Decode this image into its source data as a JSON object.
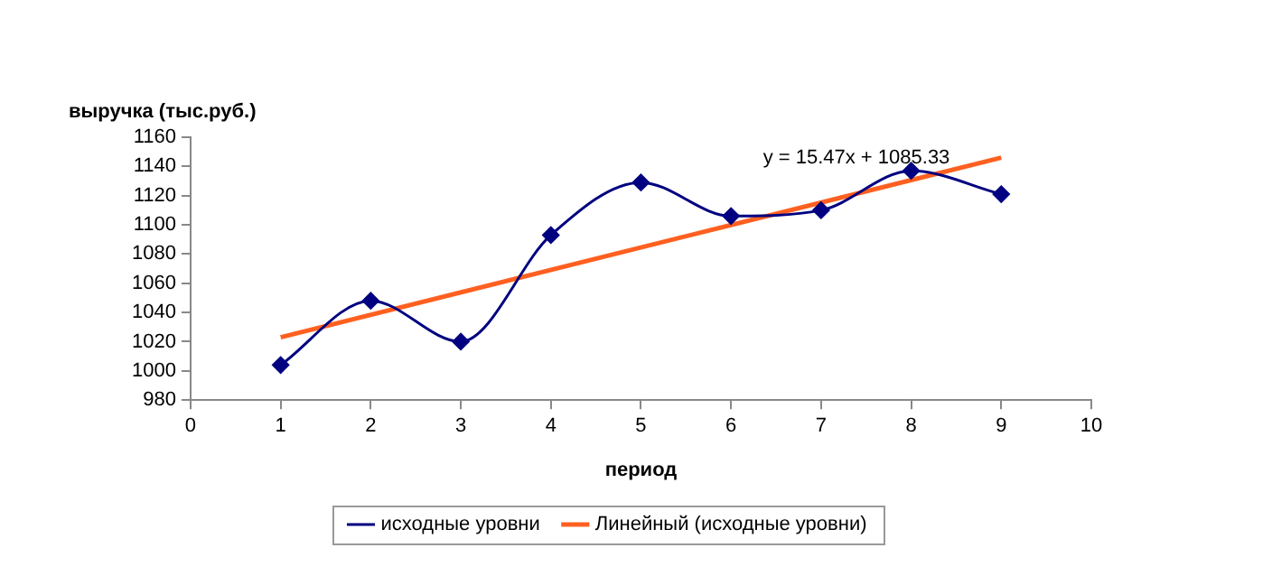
{
  "chart_data": {
    "type": "line",
    "ylabel": "выручка (тыс.руб.)",
    "xlabel": "период",
    "xlim": [
      0,
      10
    ],
    "xticks": [
      0,
      1,
      2,
      3,
      4,
      5,
      6,
      7,
      8,
      9,
      10
    ],
    "ylim": [
      980,
      1160
    ],
    "yticks": [
      980,
      1000,
      1020,
      1040,
      1060,
      1080,
      1100,
      1120,
      1140,
      1160
    ],
    "grid": false,
    "legend": "bottom",
    "marker": "diamond",
    "series": [
      {
        "name": "исходные уровни",
        "color": "#000080",
        "x": [
          1,
          2,
          3,
          4,
          5,
          6,
          7,
          8,
          9
        ],
        "values": [
          1004,
          1048,
          1020,
          1093,
          1129,
          1106,
          1110,
          1137,
          1121
        ]
      },
      {
        "name": "Линейный (исходные уровни)",
        "color": "#ff6020",
        "type": "line",
        "marker": "none",
        "x": [
          1,
          9
        ],
        "values": [
          1023,
          1146
        ]
      }
    ],
    "annotations": [
      "y = 15.47x + 1085.33"
    ]
  }
}
